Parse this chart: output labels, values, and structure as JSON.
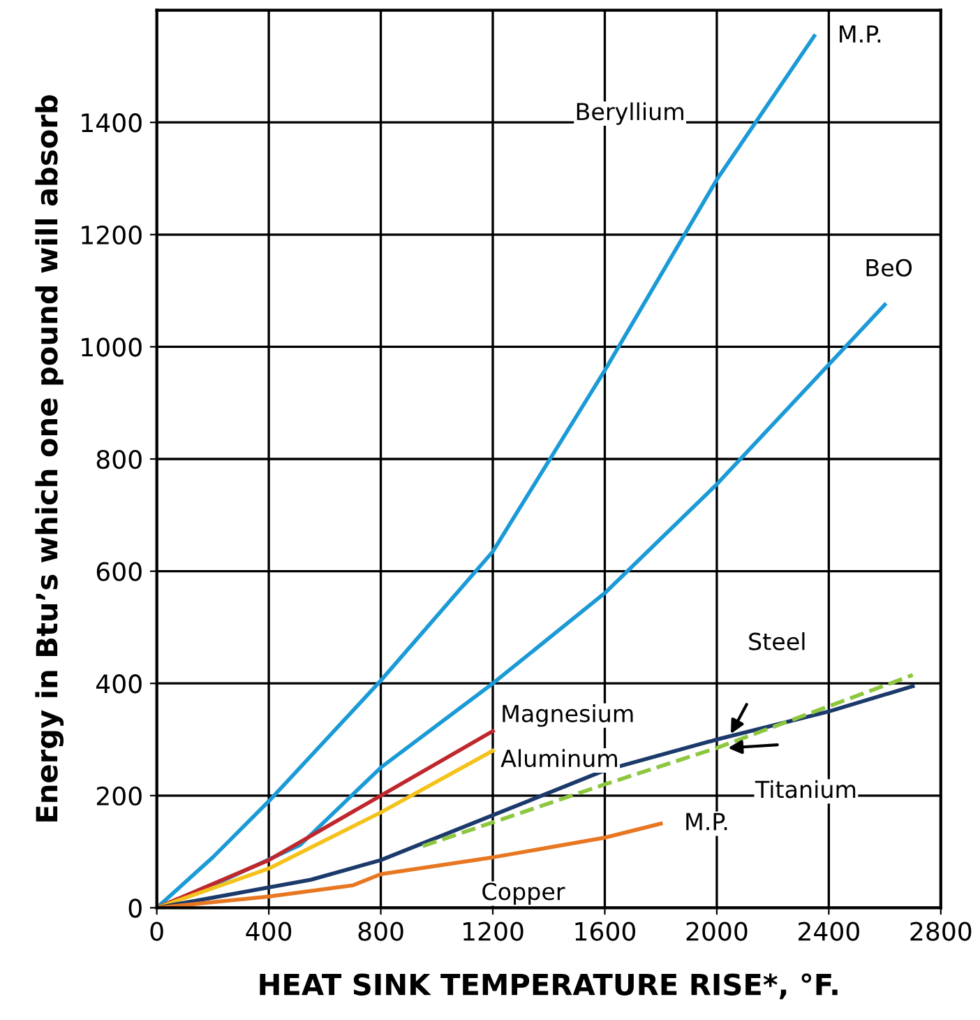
{
  "chart_data": {
    "type": "line",
    "xlabel": "HEAT SINK TEMPERATURE RISE*, °F.",
    "ylabel": "Energy in Btu’s which one pound will absorb",
    "xlim": [
      0,
      2800
    ],
    "xticks": [
      0,
      400,
      800,
      1200,
      1600,
      2000,
      2400,
      2800
    ],
    "ylim": [
      0,
      1600
    ],
    "yticks": [
      0,
      200,
      400,
      600,
      800,
      1000,
      1200,
      1400
    ],
    "grid": true,
    "line_style": "solid",
    "series": [
      {
        "name": "Beryllium",
        "color": "#1a9ad6",
        "x": [
          0,
          200,
          400,
          800,
          1200,
          1600,
          2000,
          2348
        ],
        "values": [
          0,
          90,
          190,
          405,
          635,
          958,
          1298,
          1554
        ]
      },
      {
        "name": "BeO",
        "color": "#1a9ad6",
        "x": [
          0,
          200,
          512,
          800,
          1200,
          1600,
          2000,
          2600
        ],
        "values": [
          0,
          40,
          112,
          250,
          400,
          561,
          755,
          1075
        ]
      },
      {
        "name": "Magnesium",
        "color": "#c0272d",
        "x": [
          0,
          400,
          800,
          1200
        ],
        "values": [
          0,
          85,
          200,
          315
        ]
      },
      {
        "name": "Aluminum",
        "color": "#f5c21b",
        "x": [
          0,
          400,
          800,
          1200
        ],
        "values": [
          0,
          70,
          170,
          280
        ]
      },
      {
        "name": "Steel",
        "color": "#1b3a6b",
        "x": [
          0,
          550,
          800,
          1200,
          1600,
          2000,
          2400,
          2700
        ],
        "values": [
          0,
          50,
          85,
          165,
          245,
          300,
          350,
          395
        ]
      },
      {
        "name": "Titanium",
        "color": "#8dc63f",
        "line_style": "dashed",
        "x": [
          950,
          1600,
          2000,
          2700
        ],
        "values": [
          110,
          220,
          285,
          415
        ]
      },
      {
        "name": "Copper",
        "color": "#e87722",
        "x": [
          0,
          400,
          700,
          800,
          1200,
          1600,
          1800
        ],
        "values": [
          0,
          20,
          40,
          60,
          90,
          125,
          150
        ]
      }
    ],
    "annotations": [
      {
        "text": "M.P.",
        "x": 2348,
        "y": 1554
      },
      {
        "text": "M.P.",
        "x": 1800,
        "y": 150
      }
    ]
  }
}
